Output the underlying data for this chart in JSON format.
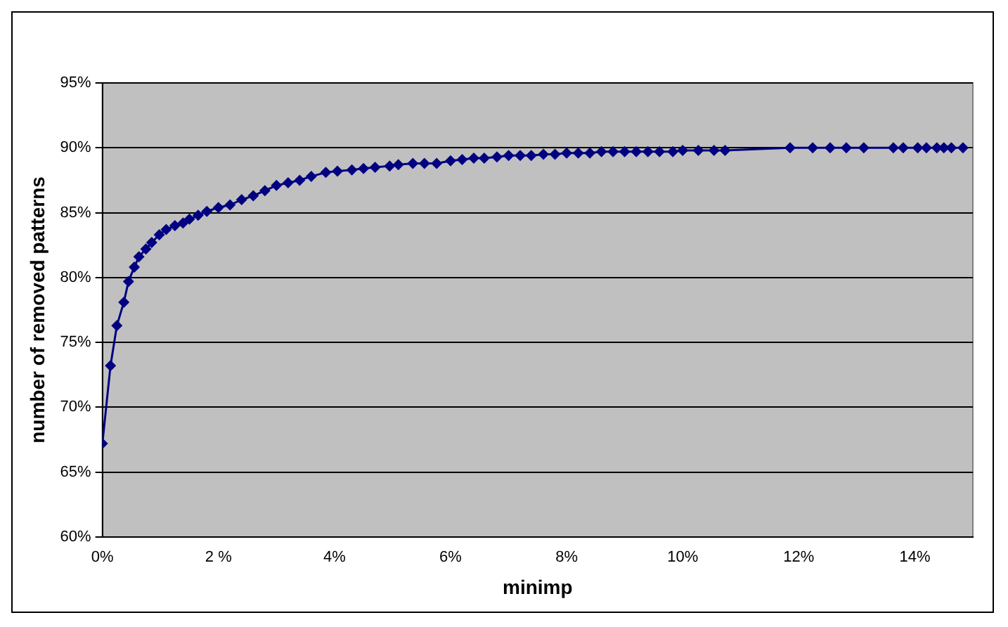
{
  "chart_data": {
    "type": "line",
    "xlabel": "minimp",
    "ylabel": "number of removed patterns",
    "x": [
      0,
      0.14,
      0.25,
      0.37,
      0.45,
      0.55,
      0.63,
      0.75,
      0.85,
      0.98,
      1.1,
      1.25,
      1.39,
      1.5,
      1.65,
      1.8,
      2.0,
      2.2,
      2.4,
      2.6,
      2.8,
      3.0,
      3.2,
      3.4,
      3.6,
      3.85,
      4.05,
      4.3,
      4.5,
      4.7,
      4.95,
      5.1,
      5.35,
      5.55,
      5.76,
      6.0,
      6.2,
      6.4,
      6.58,
      6.8,
      7.0,
      7.2,
      7.39,
      7.6,
      7.8,
      8.0,
      8.2,
      8.4,
      8.6,
      8.8,
      9.0,
      9.2,
      9.4,
      9.6,
      9.83,
      10.0,
      10.27,
      10.54,
      10.73,
      11.85,
      12.24,
      12.54,
      12.82,
      13.12,
      13.63,
      13.8,
      14.05,
      14.2,
      14.38,
      14.5,
      14.63,
      14.83
    ],
    "series": [
      {
        "color": "#000080",
        "values": [
          67.2,
          73.2,
          76.3,
          78.1,
          79.7,
          80.8,
          81.6,
          82.2,
          82.7,
          83.3,
          83.7,
          84.0,
          84.2,
          84.5,
          84.8,
          85.1,
          85.4,
          85.6,
          86.0,
          86.3,
          86.7,
          87.1,
          87.3,
          87.5,
          87.8,
          88.1,
          88.2,
          88.3,
          88.4,
          88.5,
          88.6,
          88.7,
          88.8,
          88.8,
          88.8,
          89.0,
          89.1,
          89.2,
          89.2,
          89.3,
          89.4,
          89.4,
          89.4,
          89.5,
          89.5,
          89.6,
          89.6,
          89.6,
          89.7,
          89.7,
          89.7,
          89.7,
          89.7,
          89.7,
          89.7,
          89.8,
          89.8,
          89.8,
          89.8,
          90.0,
          90.0,
          90.0,
          90.0,
          90.0,
          90.0,
          90.0,
          90.0,
          90.0,
          90.0,
          90.0,
          90.0,
          90.0
        ]
      }
    ],
    "xlim": [
      0,
      15
    ],
    "ylim": [
      60,
      95
    ],
    "xticks": [
      {
        "value": 0,
        "label": "0%"
      },
      {
        "value": 2,
        "label": "2 %"
      },
      {
        "value": 4,
        "label": "4%"
      },
      {
        "value": 6,
        "label": "6%"
      },
      {
        "value": 8,
        "label": "8%"
      },
      {
        "value": 10,
        "label": "10%"
      },
      {
        "value": 12,
        "label": "12%"
      },
      {
        "value": 14,
        "label": "14%"
      }
    ],
    "yticks": [
      {
        "value": 60,
        "label": "60%"
      },
      {
        "value": 65,
        "label": "65%"
      },
      {
        "value": 70,
        "label": "70%"
      },
      {
        "value": 75,
        "label": "75%"
      },
      {
        "value": 80,
        "label": "80%"
      },
      {
        "value": 85,
        "label": "85%"
      },
      {
        "value": 90,
        "label": "90%"
      },
      {
        "value": 95,
        "label": "95%"
      }
    ],
    "grid": "y",
    "marker": "diamond",
    "line_style": "solid",
    "legend": false
  }
}
